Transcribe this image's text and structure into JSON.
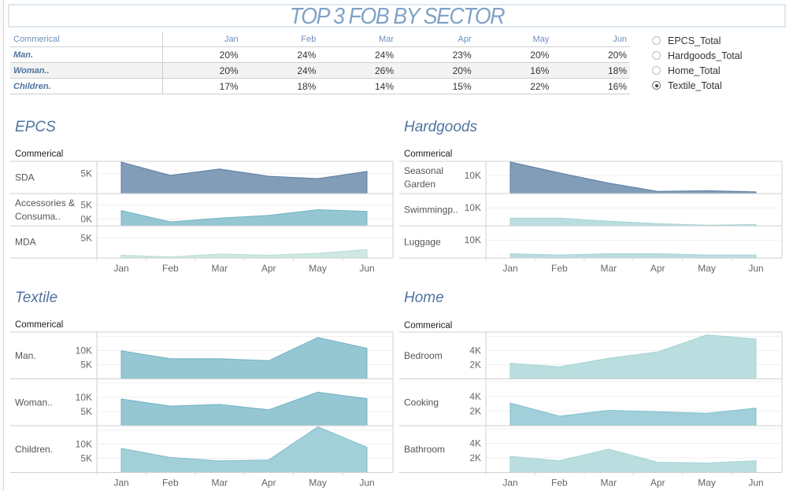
{
  "title": "TOP 3 FOB BY SECTOR",
  "table": {
    "header_label": "Commerical",
    "months": [
      "Jan",
      "Feb",
      "Mar",
      "Apr",
      "May",
      "Jun"
    ],
    "rows": [
      {
        "label": "Man.",
        "values": [
          "20%",
          "24%",
          "24%",
          "23%",
          "20%",
          "20%"
        ]
      },
      {
        "label": "Woman..",
        "values": [
          "20%",
          "24%",
          "26%",
          "20%",
          "16%",
          "18%"
        ]
      },
      {
        "label": "Children.",
        "values": [
          "17%",
          "18%",
          "14%",
          "15%",
          "22%",
          "16%"
        ]
      }
    ]
  },
  "radio_options": [
    {
      "label": "EPCS_Total",
      "selected": false
    },
    {
      "label": "Hardgoods_Total",
      "selected": false
    },
    {
      "label": "Home_Total",
      "selected": false
    },
    {
      "label": "Textile_Total",
      "selected": true
    }
  ],
  "colors": {
    "title": "#7fa2c6",
    "panel_title": "#4f73a0",
    "dark_area": "#7b98b4",
    "teal_area": "#8fc4d1",
    "light_teal_area": "#b6dcdd",
    "mint_area": "#cbe7e2"
  },
  "chart_data": [
    {
      "type": "area",
      "title": "EPCS",
      "row_header": "Commerical",
      "categories": [
        "Jan",
        "Feb",
        "Mar",
        "Apr",
        "May",
        "Jun"
      ],
      "series": [
        {
          "name": "SDA",
          "values": [
            7800,
            4500,
            6100,
            4300,
            3700,
            5500
          ],
          "ylim": [
            0,
            8000
          ],
          "ticks": [
            {
              "v": 5000,
              "label": "5K"
            }
          ],
          "color": "#7b98b4",
          "stroke": "#5a7ba0"
        },
        {
          "name": "Accessories & Consuma..",
          "values": [
            3000,
            -1000,
            300,
            1300,
            3300,
            2700
          ],
          "ylim": [
            -2400,
            9000
          ],
          "ticks": [
            {
              "v": 5000,
              "label": "5K"
            },
            {
              "v": 0,
              "label": "0K"
            }
          ],
          "color": "#8fc4d1",
          "stroke": "#6fb1c3"
        },
        {
          "name": "MDA",
          "values": [
            700,
            300,
            1000,
            700,
            1200,
            2100
          ],
          "ylim": [
            0,
            8000
          ],
          "ticks": [
            {
              "v": 5000,
              "label": "5K"
            }
          ],
          "color": "#cbe7e2",
          "stroke": "#b8ddd6"
        }
      ]
    },
    {
      "type": "area",
      "title": "Hardgoods",
      "row_header": "Commerical",
      "categories": [
        "Jan",
        "Feb",
        "Mar",
        "Apr",
        "May",
        "Jun"
      ],
      "series": [
        {
          "name": "Seasonal Garden",
          "values": [
            17600,
            11500,
            5900,
            1200,
            1600,
            900
          ],
          "ylim": [
            0,
            18000
          ],
          "ticks": [
            {
              "v": 10000,
              "label": "10K"
            }
          ],
          "color": "#7b98b4",
          "stroke": "#5a7ba0"
        },
        {
          "name": "Swimmingp..",
          "values": [
            4300,
            4300,
            2600,
            1200,
            300,
            700
          ],
          "ylim": [
            0,
            18000
          ],
          "ticks": [
            {
              "v": 10000,
              "label": "10K"
            }
          ],
          "color": "#b6dcdd",
          "stroke": "#a3d2d3"
        },
        {
          "name": "Luggage",
          "values": [
            2400,
            1700,
            2400,
            2400,
            1700,
            1700
          ],
          "ylim": [
            0,
            18000
          ],
          "ticks": [
            {
              "v": 10000,
              "label": "10K"
            }
          ],
          "color": "#b6dcdd",
          "stroke": "#a3d2d3"
        }
      ]
    },
    {
      "type": "area",
      "title": "Textile",
      "row_header": "Commerical",
      "categories": [
        "Jan",
        "Feb",
        "Mar",
        "Apr",
        "May",
        "Jun"
      ],
      "series": [
        {
          "name": "Man.",
          "values": [
            9900,
            7100,
            7100,
            6400,
            14600,
            10800
          ],
          "ylim": [
            0,
            16500
          ],
          "ticks": [
            {
              "v": 15000,
              "label": ""
            },
            {
              "v": 10000,
              "label": "10K"
            },
            {
              "v": 5000,
              "label": "5K"
            }
          ],
          "color": "#8fc4d1",
          "stroke": "#6fb1c3"
        },
        {
          "name": "Woman..",
          "values": [
            9400,
            6900,
            7500,
            5600,
            11800,
            9500
          ],
          "ylim": [
            0,
            16500
          ],
          "ticks": [
            {
              "v": 15000,
              "label": ""
            },
            {
              "v": 10000,
              "label": "10K"
            },
            {
              "v": 5000,
              "label": "5K"
            }
          ],
          "color": "#8fc4d1",
          "stroke": "#6fb1c3"
        },
        {
          "name": "Children.",
          "values": [
            8500,
            5300,
            4100,
            4400,
            16100,
            8900
          ],
          "ylim": [
            0,
            16500
          ],
          "ticks": [
            {
              "v": 15000,
              "label": ""
            },
            {
              "v": 10000,
              "label": "10K"
            },
            {
              "v": 5000,
              "label": "5K"
            }
          ],
          "color": "#9dcdd7",
          "stroke": "#7fbccb"
        }
      ]
    },
    {
      "type": "area",
      "title": "Home",
      "row_header": "Commerical",
      "categories": [
        "Jan",
        "Feb",
        "Mar",
        "Apr",
        "May",
        "Jun"
      ],
      "series": [
        {
          "name": "Bedroom",
          "values": [
            2200,
            1700,
            2900,
            3800,
            6200,
            5600
          ],
          "ylim": [
            0,
            6600
          ],
          "ticks": [
            {
              "v": 6000,
              "label": ""
            },
            {
              "v": 4000,
              "label": "4K"
            },
            {
              "v": 2000,
              "label": "2K"
            }
          ],
          "color": "#b6dcdd",
          "stroke": "#a3d2d3"
        },
        {
          "name": "Cooking",
          "values": [
            3100,
            1300,
            2100,
            1900,
            1700,
            2400
          ],
          "ylim": [
            0,
            6400
          ],
          "ticks": [
            {
              "v": 6000,
              "label": ""
            },
            {
              "v": 4000,
              "label": "4K"
            },
            {
              "v": 2000,
              "label": "2K"
            }
          ],
          "color": "#9ccdd8",
          "stroke": "#80bfcd"
        },
        {
          "name": "Bathroom",
          "values": [
            2200,
            1600,
            3200,
            1400,
            1300,
            1600
          ],
          "ylim": [
            0,
            6400
          ],
          "ticks": [
            {
              "v": 6000,
              "label": ""
            },
            {
              "v": 4000,
              "label": "4K"
            },
            {
              "v": 2000,
              "label": "2K"
            }
          ],
          "color": "#b6dcdd",
          "stroke": "#a3d2d3"
        }
      ]
    }
  ]
}
